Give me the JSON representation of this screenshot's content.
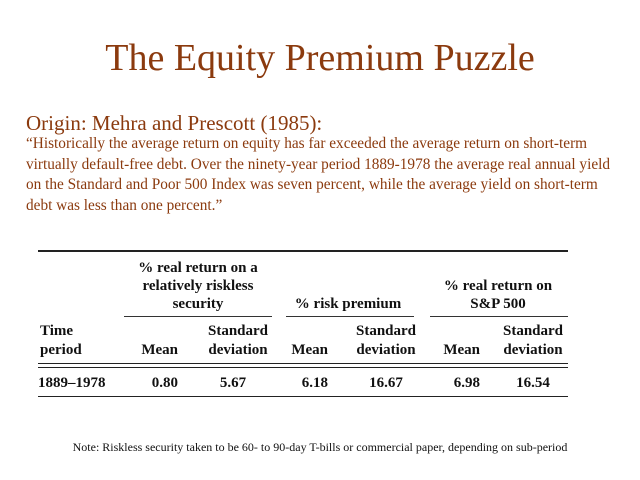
{
  "slide": {
    "title": "The Equity Premium Puzzle",
    "origin": "Origin: Mehra and Prescott (1985):",
    "quote": "“Historically the average return on equity has far exceeded the average return on short-term virtually default-free debt. Over the ninety-year period 1889-1978 the average real annual yield on the Standard and Poor 500 Index was seven percent, while the average yield on short-term debt was less than one percent.”"
  },
  "table": {
    "group_headers": {
      "riskless_line1": "% real return on a",
      "riskless_line2": "relatively riskless",
      "riskless_line3": "security",
      "premium": "% risk premium",
      "sp_line1": "% real return on",
      "sp_line2": "S&P 500"
    },
    "column_headers": {
      "time_line1": "Time",
      "time_line2": "period",
      "mean": "Mean",
      "std_line1": "Standard",
      "std_line2": "deviation"
    },
    "row": {
      "period": "1889–1978",
      "riskless_mean": "0.80",
      "riskless_sd": "5.67",
      "premium_mean": "6.18",
      "premium_sd": "16.67",
      "sp_mean": "6.98",
      "sp_sd": "16.54"
    }
  },
  "note": "Note: Riskless security taken to be 60- to 90-day T-bills or commercial paper, depending on sub-period",
  "colors": {
    "accent": "#8b3a0e",
    "text": "#111111"
  }
}
